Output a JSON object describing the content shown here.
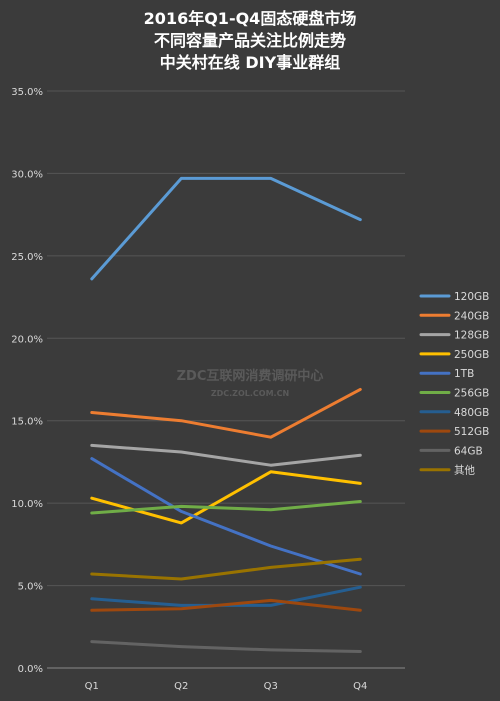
{
  "chart_data": {
    "type": "line",
    "title_lines": [
      "2016年Q1-Q4固态硬盘市场",
      "不同容量产品关注比例走势",
      "中关村在线 DIY事业群组"
    ],
    "categories": [
      "Q1",
      "Q2",
      "Q3",
      "Q4"
    ],
    "y_ticks": [
      "0.0%",
      "5.0%",
      "10.0%",
      "15.0%",
      "20.0%",
      "25.0%",
      "30.0%",
      "35.0%"
    ],
    "ylim": [
      0,
      35
    ],
    "grid": true,
    "legend_position": "right",
    "series": [
      {
        "name": "120GB",
        "color": "#5b9bd5",
        "values": [
          23.6,
          29.7,
          29.7,
          27.2
        ]
      },
      {
        "name": "240GB",
        "color": "#ed7d31",
        "values": [
          15.5,
          15.0,
          14.0,
          16.9
        ]
      },
      {
        "name": "128GB",
        "color": "#a5a5a5",
        "values": [
          13.5,
          13.1,
          12.3,
          12.9
        ]
      },
      {
        "name": "250GB",
        "color": "#ffc000",
        "values": [
          10.3,
          8.8,
          11.9,
          11.2
        ]
      },
      {
        "name": "1TB",
        "color": "#4472c4",
        "values": [
          12.7,
          9.5,
          7.4,
          5.7
        ]
      },
      {
        "name": "256GB",
        "color": "#70ad47",
        "values": [
          9.4,
          9.8,
          9.6,
          10.1
        ]
      },
      {
        "name": "480GB",
        "color": "#255e91",
        "values": [
          4.2,
          3.8,
          3.8,
          4.9
        ]
      },
      {
        "name": "512GB",
        "color": "#9e480e",
        "values": [
          3.5,
          3.6,
          4.1,
          3.5
        ]
      },
      {
        "name": "64GB",
        "color": "#636363",
        "values": [
          1.6,
          1.3,
          1.1,
          1.0
        ]
      },
      {
        "name": "其他",
        "color": "#997300",
        "values": [
          5.7,
          5.4,
          6.1,
          6.6
        ]
      }
    ]
  },
  "watermark": {
    "line1": "ZDC互联网消费调研中心",
    "line2": "ZDC.ZOL.COM.CN"
  }
}
